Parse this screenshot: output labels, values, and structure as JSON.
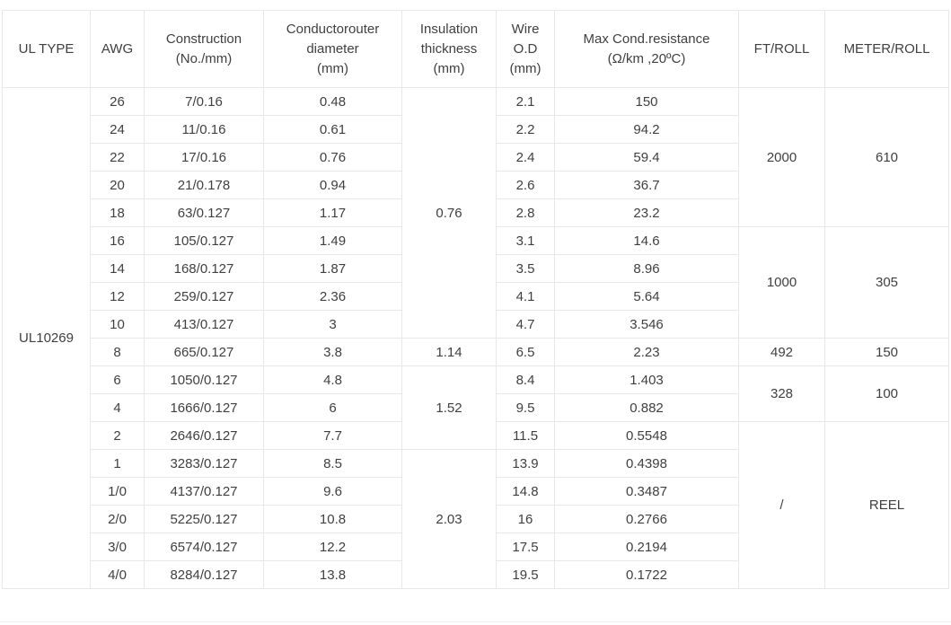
{
  "table": {
    "columns": [
      {
        "label": "UL TYPE"
      },
      {
        "label": "AWG"
      },
      {
        "label": "Construction\n(No./mm)"
      },
      {
        "label": "Conductorouter\ndiameter\n(mm)"
      },
      {
        "label": "Insulation\nthickness\n(mm)"
      },
      {
        "label": "Wire\nO.D\n(mm)"
      },
      {
        "label": "Max Cond.resistance\n(Ω/km ,20ºC)"
      },
      {
        "label": "FT/ROLL"
      },
      {
        "label": "METER/ROLL"
      }
    ],
    "ul_type": "UL10269",
    "rows": [
      {
        "awg": "26",
        "construction": "7/0.16",
        "conductor_od": "0.48",
        "wire_od": "2.1",
        "resistance": "150"
      },
      {
        "awg": "24",
        "construction": "11/0.16",
        "conductor_od": "0.61",
        "wire_od": "2.2",
        "resistance": "94.2"
      },
      {
        "awg": "22",
        "construction": "17/0.16",
        "conductor_od": "0.76",
        "wire_od": "2.4",
        "resistance": "59.4"
      },
      {
        "awg": "20",
        "construction": "21/0.178",
        "conductor_od": "0.94",
        "wire_od": "2.6",
        "resistance": "36.7"
      },
      {
        "awg": "18",
        "construction": "63/0.127",
        "conductor_od": "1.17",
        "wire_od": "2.8",
        "resistance": "23.2"
      },
      {
        "awg": "16",
        "construction": "105/0.127",
        "conductor_od": "1.49",
        "wire_od": "3.1",
        "resistance": "14.6"
      },
      {
        "awg": "14",
        "construction": "168/0.127",
        "conductor_od": "1.87",
        "wire_od": "3.5",
        "resistance": "8.96"
      },
      {
        "awg": "12",
        "construction": "259/0.127",
        "conductor_od": "2.36",
        "wire_od": "4.1",
        "resistance": "5.64"
      },
      {
        "awg": "10",
        "construction": "413/0.127",
        "conductor_od": "3",
        "wire_od": "4.7",
        "resistance": "3.546"
      },
      {
        "awg": "8",
        "construction": "665/0.127",
        "conductor_od": "3.8",
        "wire_od": "6.5",
        "resistance": "2.23"
      },
      {
        "awg": "6",
        "construction": "1050/0.127",
        "conductor_od": "4.8",
        "wire_od": "8.4",
        "resistance": "1.403"
      },
      {
        "awg": "4",
        "construction": "1666/0.127",
        "conductor_od": "6",
        "wire_od": "9.5",
        "resistance": "0.882"
      },
      {
        "awg": "2",
        "construction": "2646/0.127",
        "conductor_od": "7.7",
        "wire_od": "11.5",
        "resistance": "0.5548"
      },
      {
        "awg": "1",
        "construction": "3283/0.127",
        "conductor_od": "8.5",
        "wire_od": "13.9",
        "resistance": "0.4398"
      },
      {
        "awg": "1/0",
        "construction": "4137/0.127",
        "conductor_od": "9.6",
        "wire_od": "14.8",
        "resistance": "0.3487"
      },
      {
        "awg": "2/0",
        "construction": "5225/0.127",
        "conductor_od": "10.8",
        "wire_od": "16",
        "resistance": "0.2766"
      },
      {
        "awg": "3/0",
        "construction": "6574/0.127",
        "conductor_od": "12.2",
        "wire_od": "17.5",
        "resistance": "0.2194"
      },
      {
        "awg": "4/0",
        "construction": "8284/0.127",
        "conductor_od": "13.8",
        "wire_od": "19.5",
        "resistance": "0.1722"
      }
    ],
    "insulation_groups": [
      {
        "value": "0.76",
        "span": 9
      },
      {
        "value": "1.14",
        "span": 1
      },
      {
        "value": "1.52",
        "span": 3
      },
      {
        "value": "2.03",
        "span": 5
      }
    ],
    "roll_groups": [
      {
        "ft": "2000",
        "meter": "610",
        "span": 5
      },
      {
        "ft": "1000",
        "meter": "305",
        "span": 4
      },
      {
        "ft": "492",
        "meter": "150",
        "span": 1
      },
      {
        "ft": "328",
        "meter": "100",
        "span": 2
      },
      {
        "ft": "/",
        "meter": "REEL",
        "span": 6
      }
    ],
    "colors": {
      "border": "#e8e8e8",
      "text": "#404040",
      "background": "#ffffff"
    }
  }
}
